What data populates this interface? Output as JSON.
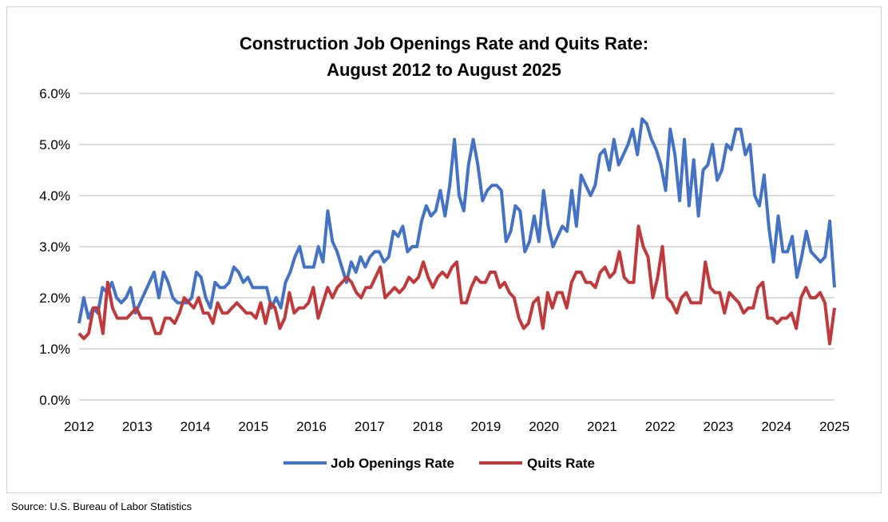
{
  "chart_data": {
    "type": "line",
    "title": [
      "Construction Job Openings Rate and Quits Rate:",
      "August 2012 to August 2025"
    ],
    "xlabel": "",
    "ylabel": "",
    "x_range": [
      2012,
      2025
    ],
    "x_ticks": [
      "2012",
      "2013",
      "2014",
      "2015",
      "2016",
      "2017",
      "2018",
      "2019",
      "2020",
      "2021",
      "2022",
      "2023",
      "2024",
      "2025"
    ],
    "y_ticks": [
      "0.0%",
      "1.0%",
      "2.0%",
      "3.0%",
      "4.0%",
      "5.0%",
      "6.0%"
    ],
    "ylim": [
      0,
      6
    ],
    "grid": "horizontal",
    "legend_position": "bottom",
    "series": [
      {
        "name": "Job Openings Rate",
        "color": "#4472C4",
        "values": [
          1.5,
          2.0,
          1.6,
          1.8,
          1.7,
          2.2,
          2.1,
          2.3,
          2.0,
          1.9,
          2.0,
          2.2,
          1.7,
          1.9,
          2.1,
          2.3,
          2.5,
          2.0,
          2.5,
          2.3,
          2.0,
          1.9,
          1.9,
          1.9,
          2.0,
          2.5,
          2.4,
          2.0,
          1.8,
          2.3,
          2.2,
          2.2,
          2.3,
          2.6,
          2.5,
          2.3,
          2.4,
          2.2,
          2.2,
          2.2,
          2.2,
          1.8,
          2.0,
          1.8,
          2.3,
          2.5,
          2.8,
          3.0,
          2.6,
          2.6,
          2.6,
          3.0,
          2.7,
          3.7,
          3.1,
          2.9,
          2.6,
          2.3,
          2.7,
          2.5,
          2.8,
          2.6,
          2.8,
          2.9,
          2.9,
          2.7,
          2.8,
          3.3,
          3.2,
          3.4,
          2.9,
          3.0,
          3.0,
          3.5,
          3.8,
          3.6,
          3.7,
          4.1,
          3.6,
          4.2,
          5.1,
          4.0,
          3.7,
          4.6,
          5.1,
          4.6,
          3.9,
          4.1,
          4.2,
          4.2,
          4.1,
          3.1,
          3.3,
          3.8,
          3.7,
          2.9,
          3.1,
          3.6,
          3.1,
          4.1,
          3.4,
          3.0,
          3.2,
          3.4,
          3.3,
          4.1,
          3.4,
          4.4,
          4.2,
          4.0,
          4.2,
          4.8,
          4.9,
          4.5,
          5.1,
          4.6,
          4.8,
          5.0,
          5.3,
          4.8,
          5.5,
          5.4,
          5.1,
          4.9,
          4.6,
          4.1,
          5.3,
          4.8,
          3.9,
          5.1,
          3.8,
          4.7,
          3.6,
          4.5,
          4.6,
          5.0,
          4.3,
          4.5,
          5.0,
          4.9,
          5.3,
          5.3,
          4.8,
          5.0,
          4.0,
          3.8,
          4.4,
          3.4,
          2.7,
          3.6,
          2.9,
          2.9,
          3.2,
          2.4,
          2.8,
          3.3,
          2.9,
          2.8,
          2.7,
          2.8,
          3.5,
          2.2
        ]
      },
      {
        "name": "Quits Rate",
        "color": "#C0393B",
        "values": [
          1.3,
          1.2,
          1.3,
          1.8,
          1.8,
          1.3,
          2.3,
          1.8,
          1.6,
          1.6,
          1.6,
          1.7,
          1.8,
          1.6,
          1.6,
          1.6,
          1.3,
          1.3,
          1.6,
          1.6,
          1.5,
          1.7,
          2.0,
          1.9,
          1.8,
          2.0,
          1.7,
          1.7,
          1.5,
          1.9,
          1.7,
          1.7,
          1.8,
          1.9,
          1.8,
          1.7,
          1.7,
          1.6,
          1.9,
          1.5,
          1.9,
          1.8,
          1.4,
          1.6,
          2.1,
          1.7,
          1.8,
          1.8,
          1.9,
          2.2,
          1.6,
          1.9,
          2.2,
          2.0,
          2.2,
          2.3,
          2.4,
          2.3,
          2.1,
          2.0,
          2.2,
          2.2,
          2.4,
          2.6,
          2.0,
          2.1,
          2.2,
          2.1,
          2.2,
          2.4,
          2.3,
          2.4,
          2.7,
          2.4,
          2.2,
          2.4,
          2.5,
          2.4,
          2.6,
          2.7,
          1.9,
          1.9,
          2.2,
          2.4,
          2.3,
          2.3,
          2.5,
          2.5,
          2.2,
          2.3,
          2.1,
          2.0,
          1.6,
          1.4,
          1.5,
          1.9,
          2.0,
          1.4,
          2.1,
          1.8,
          2.1,
          2.1,
          1.8,
          2.3,
          2.5,
          2.5,
          2.3,
          2.3,
          2.2,
          2.5,
          2.6,
          2.4,
          2.5,
          2.9,
          2.4,
          2.3,
          2.3,
          3.4,
          3.0,
          2.8,
          2.0,
          2.4,
          3.0,
          2.0,
          1.9,
          1.7,
          2.0,
          2.1,
          1.9,
          1.9,
          1.9,
          2.7,
          2.2,
          2.1,
          2.1,
          1.7,
          2.1,
          2.0,
          1.9,
          1.7,
          1.8,
          1.8,
          2.2,
          2.3,
          1.6,
          1.6,
          1.5,
          1.6,
          1.6,
          1.7,
          1.4,
          2.0,
          2.2,
          2.0,
          2.0,
          2.1,
          1.9,
          1.1,
          1.8
        ]
      }
    ]
  },
  "source": "Source: U.S. Bureau of Labor Statistics"
}
